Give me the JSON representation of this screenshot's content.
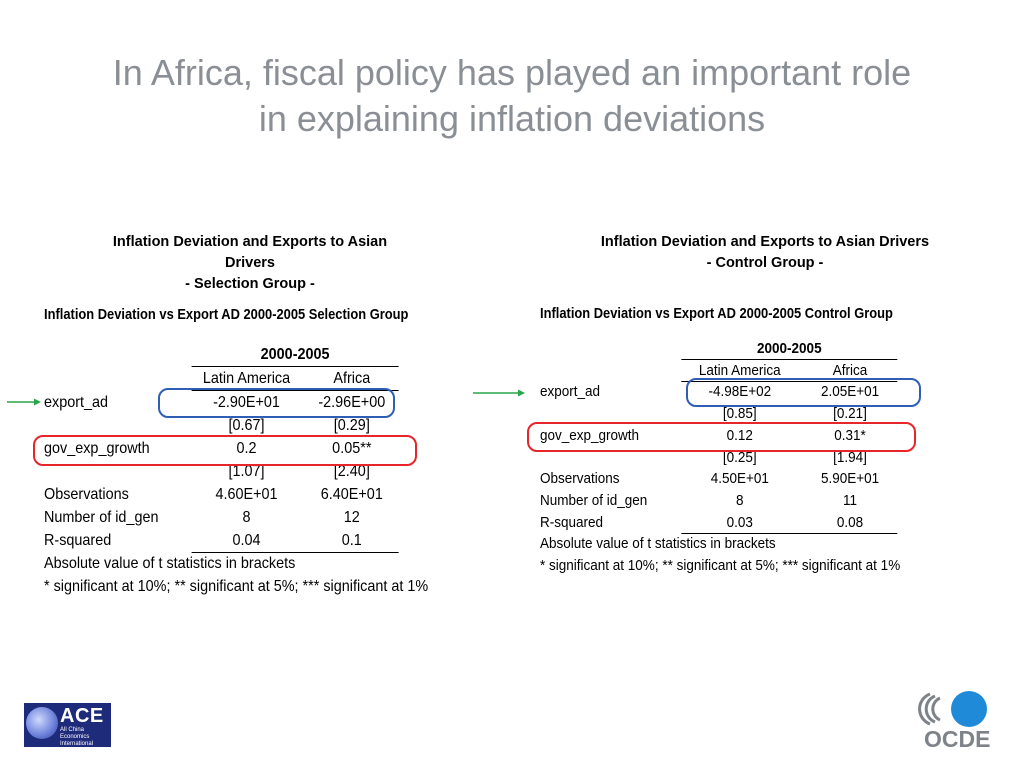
{
  "slide": {
    "title_line1": "In Africa, fiscal policy has played an important role",
    "title_line2": "in explaining inflation deviations"
  },
  "left_panel": {
    "heading_line1": "Inflation Deviation and Exports to Asian",
    "heading_line2": "Drivers",
    "heading_line3": "- Selection Group -",
    "table_title": "Inflation Deviation vs Export AD 2000-2005 Selection Group",
    "period": "2000-2005",
    "columns": [
      "Latin America",
      "Africa"
    ],
    "rows": {
      "export_ad": {
        "label": "export_ad",
        "values": [
          "-2.90E+01",
          "-2.96E+00"
        ],
        "tstats": [
          "[0.67]",
          "[0.29]"
        ]
      },
      "gov_exp_growth": {
        "label": "gov_exp_growth",
        "values": [
          "0.2",
          "0.05**"
        ],
        "tstats": [
          "[1.07]",
          "[2.40]"
        ]
      },
      "observations": {
        "label": "Observations",
        "values": [
          "4.60E+01",
          "6.40E+01"
        ]
      },
      "num_id_gen": {
        "label": "Number of id_gen",
        "values": [
          "8",
          "12"
        ]
      },
      "r_squared": {
        "label": "R-squared",
        "values": [
          "0.04",
          "0.1"
        ]
      }
    },
    "note1": "Absolute value of t statistics in brackets",
    "note2": "* significant at 10%; ** significant at 5%; *** significant at 1%"
  },
  "right_panel": {
    "heading_line1": "Inflation Deviation and Exports to Asian Drivers",
    "heading_line2": "- Control Group -",
    "table_title": "Inflation Deviation vs Export AD 2000-2005 Control Group",
    "period": "2000-2005",
    "columns": [
      "Latin America",
      "Africa"
    ],
    "rows": {
      "export_ad": {
        "label": "export_ad",
        "values": [
          "-4.98E+02",
          "2.05E+01"
        ],
        "tstats": [
          "[0.85]",
          "[0.21]"
        ]
      },
      "gov_exp_growth": {
        "label": "gov_exp_growth",
        "values": [
          "0.12",
          "0.31*"
        ],
        "tstats": [
          "[0.25]",
          "[1.94]"
        ]
      },
      "observations": {
        "label": "Observations",
        "values": [
          "4.50E+01",
          "5.90E+01"
        ]
      },
      "num_id_gen": {
        "label": "Number of id_gen",
        "values": [
          "8",
          "11"
        ]
      },
      "r_squared": {
        "label": "R-squared",
        "values": [
          "0.03",
          "0.08"
        ]
      }
    },
    "note1": "Absolute value of t statistics in brackets",
    "note2": "* significant at 10%; ** significant at 5%; *** significant at 1%"
  },
  "logos": {
    "ace": {
      "name": "ACE",
      "subtitle": "All China Economics International Conference"
    },
    "oecd": {
      "name": "OCDE"
    }
  },
  "colors": {
    "title": "#8a8f95",
    "highlight_blue": "#2e5fb5",
    "highlight_red": "#e8252b",
    "arrow_green": "#2aa64a",
    "oecd_blue": "#1f8bd8"
  }
}
